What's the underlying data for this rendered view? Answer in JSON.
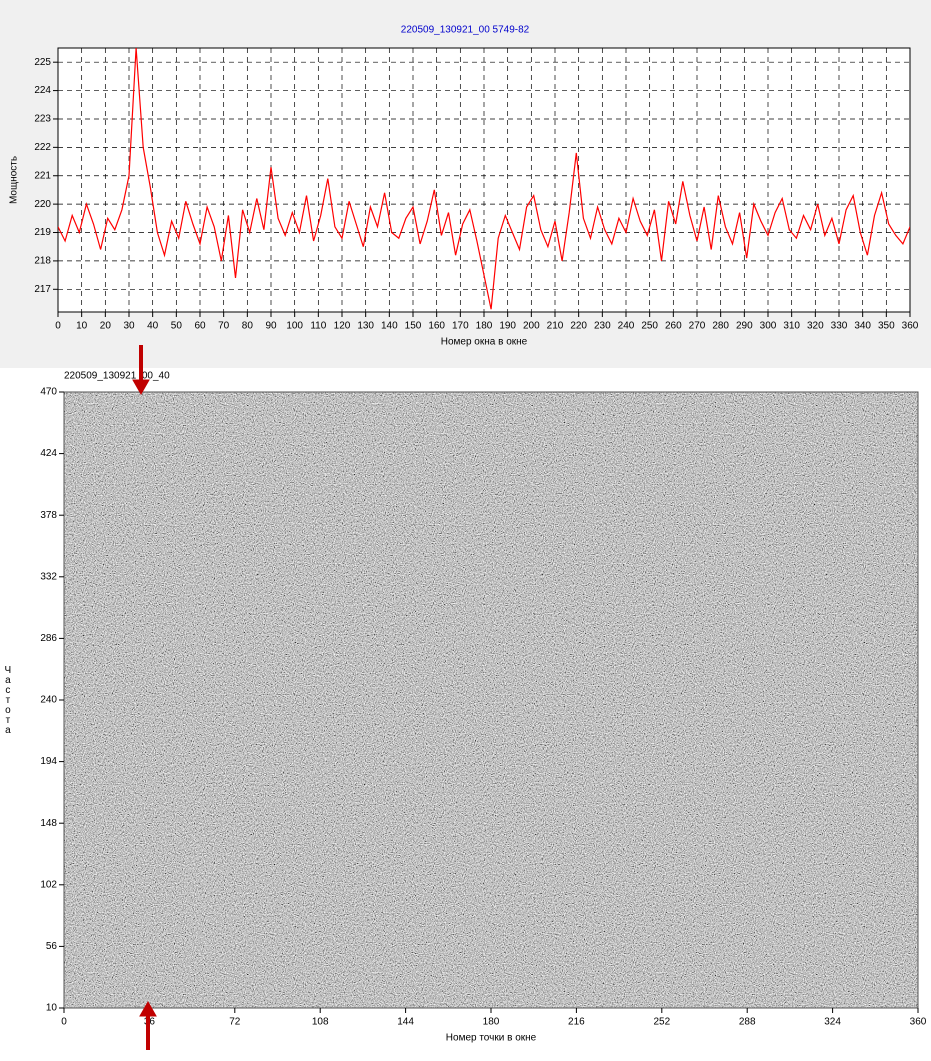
{
  "chart_data": [
    {
      "type": "line",
      "title": "220509_130921_00 5749-82",
      "x_label": "Номер окна в окне",
      "y_label": "Мощность",
      "x": [
        0,
        3,
        6,
        9,
        12,
        15,
        18,
        21,
        24,
        27,
        30,
        33,
        36,
        39,
        42,
        45,
        48,
        51,
        54,
        57,
        60,
        63,
        66,
        69,
        72,
        75,
        78,
        81,
        84,
        87,
        90,
        93,
        96,
        99,
        102,
        105,
        108,
        111,
        114,
        117,
        120,
        123,
        126,
        129,
        132,
        135,
        138,
        141,
        144,
        147,
        150,
        153,
        156,
        159,
        162,
        165,
        168,
        171,
        174,
        177,
        180,
        183,
        186,
        189,
        192,
        195,
        198,
        201,
        204,
        207,
        210,
        213,
        216,
        219,
        222,
        225,
        228,
        231,
        234,
        237,
        240,
        243,
        246,
        249,
        252,
        255,
        258,
        261,
        264,
        267,
        270,
        273,
        276,
        279,
        282,
        285,
        288,
        291,
        294,
        297,
        300,
        303,
        306,
        309,
        312,
        315,
        318,
        321,
        324,
        327,
        330,
        333,
        336,
        339,
        342,
        345,
        348,
        351,
        354,
        357,
        360
      ],
      "series": [
        {
          "color": "#ff0000",
          "values": [
            219.2,
            218.7,
            219.6,
            219.0,
            220.0,
            219.3,
            218.4,
            219.5,
            219.1,
            219.8,
            221.0,
            225.5,
            222.0,
            220.6,
            219.0,
            218.2,
            219.4,
            218.8,
            220.1,
            219.3,
            218.6,
            219.9,
            219.2,
            218.0,
            219.6,
            217.4,
            219.8,
            219.0,
            220.2,
            219.1,
            221.3,
            219.5,
            218.9,
            219.7,
            219.0,
            220.3,
            218.7,
            219.6,
            220.9,
            219.2,
            218.8,
            220.1,
            219.3,
            218.5,
            219.9,
            219.2,
            220.4,
            219.0,
            218.8,
            219.5,
            219.9,
            218.6,
            219.4,
            220.5,
            218.9,
            219.7,
            218.2,
            219.3,
            219.8,
            218.7,
            217.5,
            216.3,
            218.8,
            219.6,
            219.0,
            218.4,
            219.9,
            220.3,
            219.1,
            218.5,
            219.4,
            218.0,
            219.7,
            221.8,
            219.5,
            218.8,
            219.9,
            219.1,
            218.6,
            219.5,
            219.0,
            220.2,
            219.4,
            218.9,
            219.8,
            218.0,
            220.1,
            219.3,
            220.8,
            219.6,
            218.7,
            219.9,
            218.4,
            220.3,
            219.2,
            218.6,
            219.7,
            218.1,
            220.0,
            219.4,
            218.9,
            219.7,
            220.2,
            219.1,
            218.8,
            219.6,
            219.1,
            220.0,
            218.9,
            219.5,
            218.6,
            219.8,
            220.3,
            219.0,
            218.2,
            219.6,
            220.4,
            219.3,
            218.9,
            218.6,
            219.2
          ]
        }
      ],
      "xlim": [
        0,
        360
      ],
      "xticks": [
        0,
        10,
        20,
        30,
        40,
        50,
        60,
        70,
        80,
        90,
        100,
        110,
        120,
        130,
        140,
        150,
        160,
        170,
        180,
        190,
        200,
        210,
        220,
        230,
        240,
        250,
        260,
        270,
        280,
        290,
        300,
        310,
        320,
        330,
        340,
        350,
        360
      ],
      "ylim": [
        216.2,
        225.5
      ],
      "yticks": [
        217,
        218,
        219,
        220,
        221,
        222,
        223,
        224,
        225
      ],
      "grid": true
    },
    {
      "type": "image",
      "title": "220509_130921_00_40",
      "x_label": "Номер точки в окне",
      "y_label": "Частота",
      "xlim": [
        0,
        360
      ],
      "xticks": [
        0,
        36,
        72,
        108,
        144,
        180,
        216,
        252,
        288,
        324,
        360
      ],
      "ylim": [
        10,
        470
      ],
      "yticks": [
        10,
        56,
        102,
        148,
        194,
        240,
        286,
        332,
        378,
        424,
        470
      ],
      "grid": false
    }
  ]
}
